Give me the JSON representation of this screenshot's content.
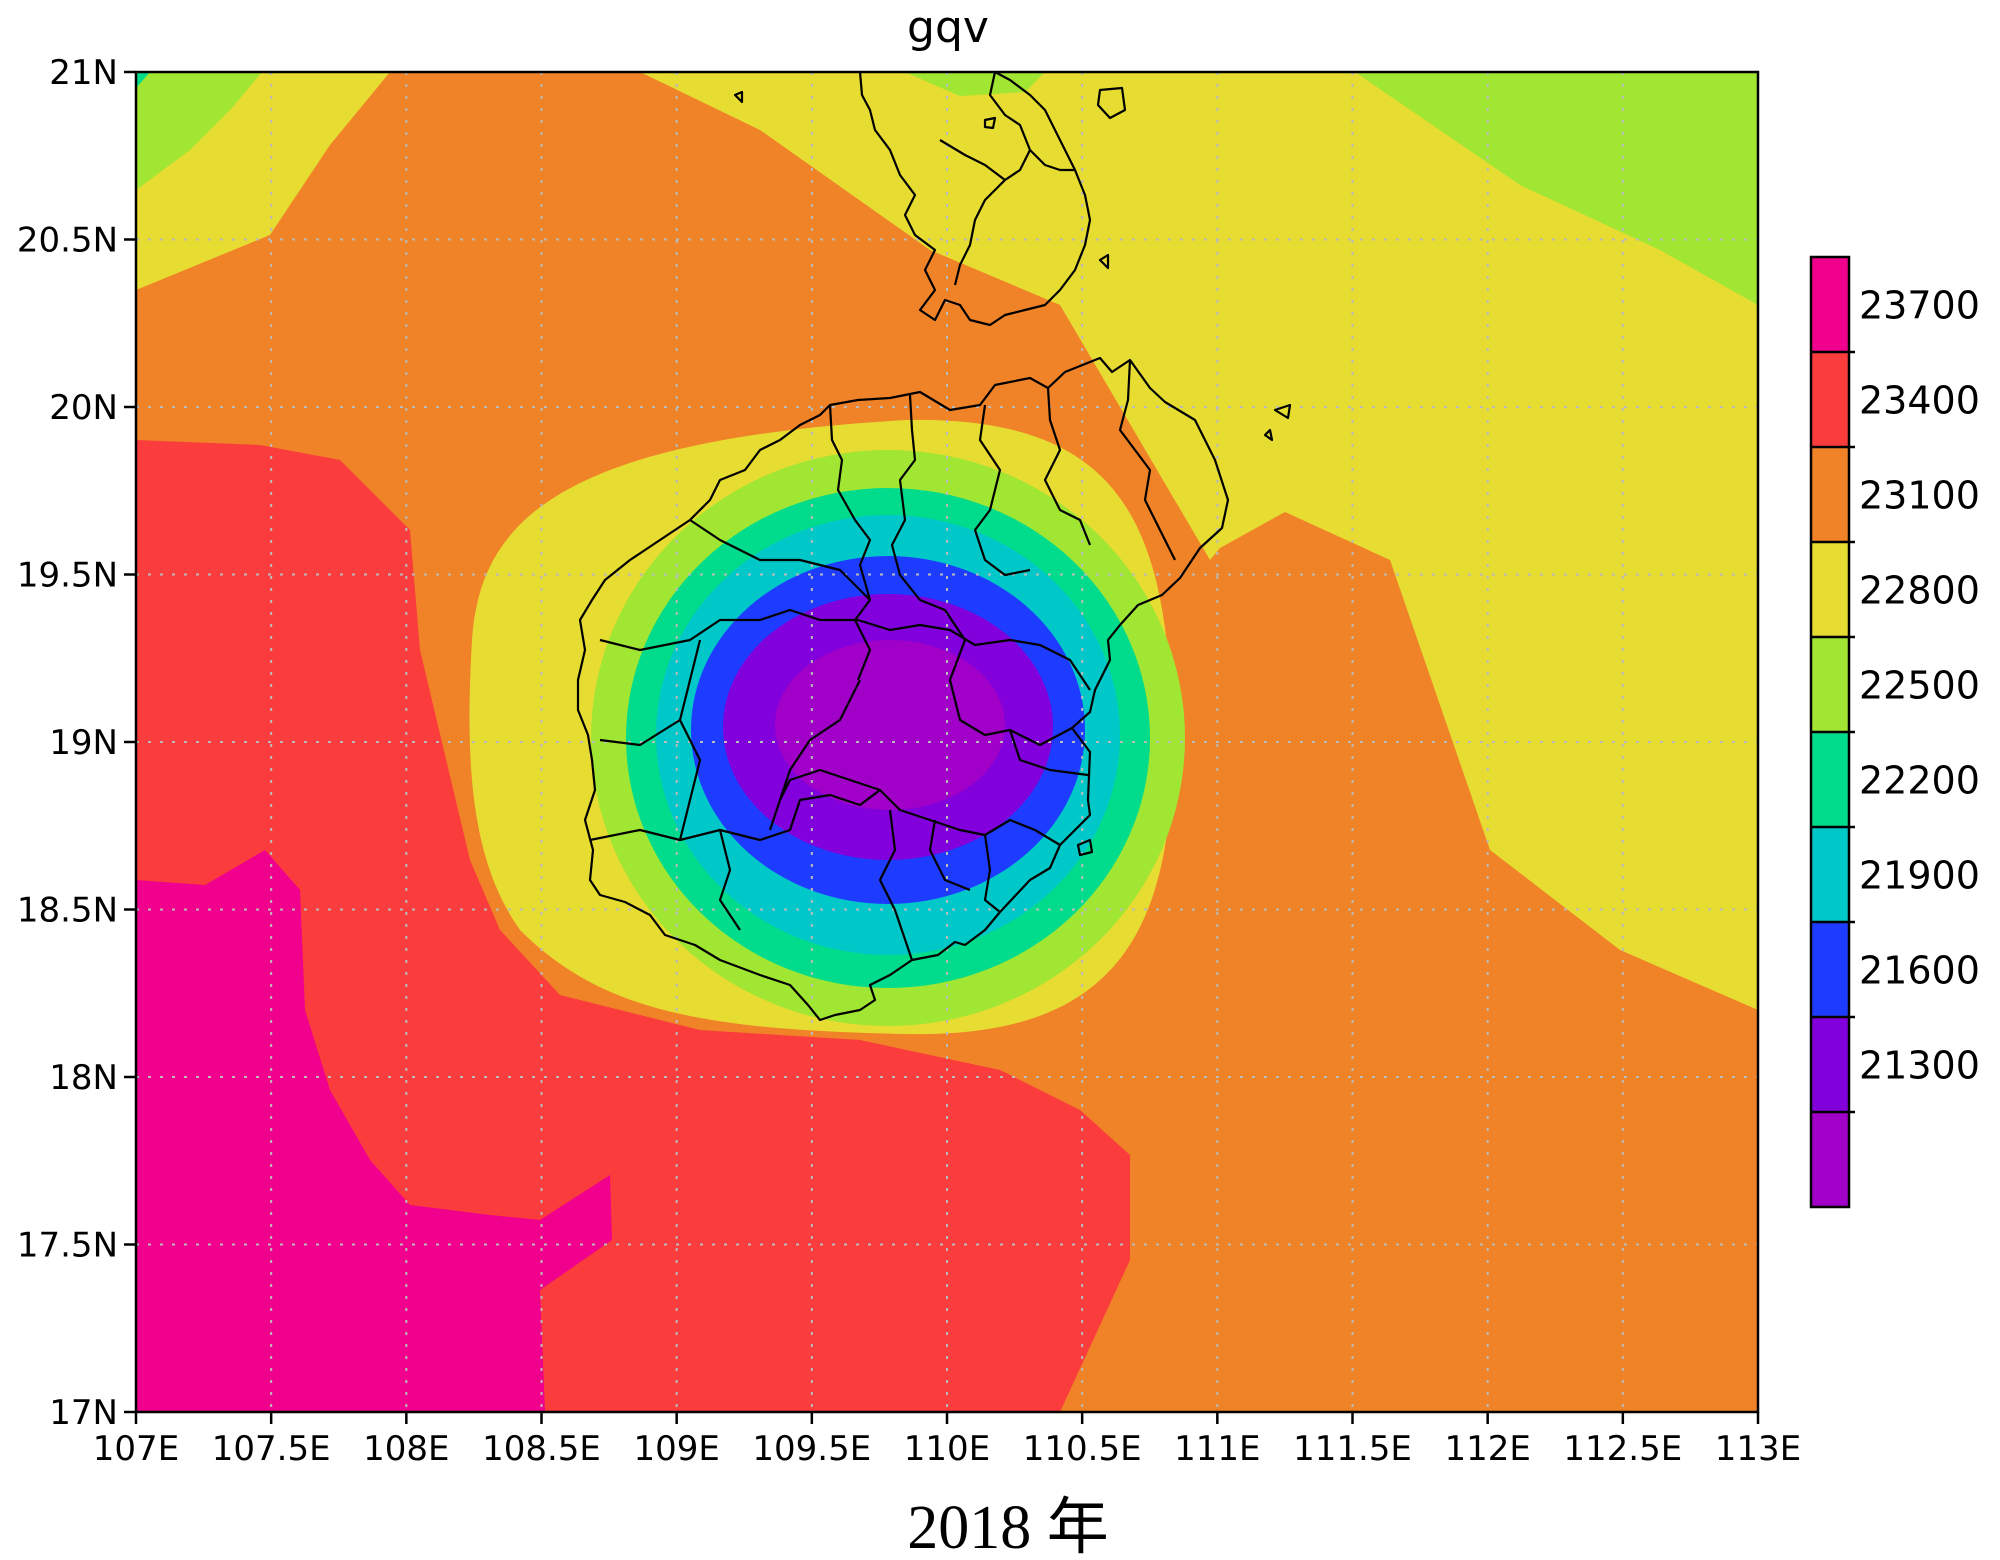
{
  "map": {
    "title": "gqv",
    "caption": "2018 年",
    "lon_range": [
      107,
      113
    ],
    "lat_range": [
      17,
      21
    ],
    "x_ticks": [
      "107E",
      "107.5E",
      "108E",
      "108.5E",
      "109E",
      "109.5E",
      "110E",
      "110.5E",
      "111E",
      "111.5E",
      "112E",
      "112.5E",
      "113E"
    ],
    "y_ticks": [
      "17N",
      "17.5N",
      "18N",
      "18.5N",
      "19N",
      "19.5N",
      "20N",
      "20.5N",
      "21N"
    ],
    "grid": "dotted",
    "field_minimum_center": {
      "lon": 109.8,
      "lat": 19.0
    },
    "region": "Hainan Island and Leizhou Peninsula",
    "admin_boundaries": true
  },
  "colorbar": {
    "placement": "right",
    "labels": [
      "23700",
      "23400",
      "23100",
      "22800",
      "22500",
      "22200",
      "21900",
      "21600",
      "21300"
    ],
    "colors": [
      "#f0008c",
      "#fa3c3c",
      "#f08228",
      "#e6dc32",
      "#a0e632",
      "#00dc8c",
      "#00c8c8",
      "#1e3cff",
      "#8200dc",
      "#a000c8"
    ]
  }
}
